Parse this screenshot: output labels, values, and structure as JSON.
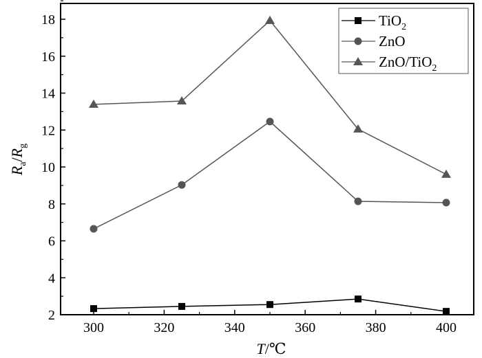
{
  "chart_data": {
    "type": "line",
    "title": "",
    "xlabel": "T/℃",
    "xlabel_parts": {
      "var": "T",
      "unit": "/℃"
    },
    "ylabel": "Ra/Rg",
    "ylabel_parts": {
      "r1": "R",
      "s1": "a",
      "slash": "/",
      "r2": "R",
      "s2": "g"
    },
    "xlim": [
      290,
      405
    ],
    "ylim": [
      2,
      19
    ],
    "xticks": [
      300,
      320,
      340,
      360,
      380,
      400
    ],
    "yticks": [
      2,
      4,
      6,
      8,
      10,
      12,
      14,
      16,
      18
    ],
    "grid": false,
    "legend_position": "top-right",
    "x": [
      300,
      325,
      350,
      375,
      400
    ],
    "series": [
      {
        "name": "TiO2",
        "label_main": "TiO",
        "label_sub": "2",
        "label_tail": "",
        "marker": "square",
        "color": "#000000",
        "values": [
          2.33,
          2.45,
          2.55,
          2.85,
          2.18
        ]
      },
      {
        "name": "ZnO",
        "label_main": "ZnO",
        "label_sub": "",
        "label_tail": "",
        "marker": "circle",
        "color": "#555555",
        "values": [
          6.65,
          9.03,
          12.46,
          8.14,
          8.07
        ]
      },
      {
        "name": "ZnO/TiO2",
        "label_main": "ZnO/TiO",
        "label_sub": "2",
        "label_tail": "",
        "marker": "triangle",
        "color": "#555555",
        "values": [
          13.39,
          13.57,
          17.93,
          12.05,
          9.6
        ]
      }
    ]
  }
}
